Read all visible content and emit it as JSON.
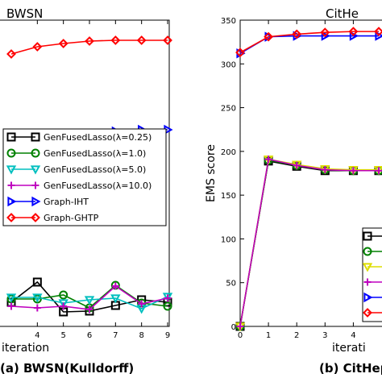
{
  "chart_data": [
    {
      "type": "line",
      "title": "BWSN",
      "caption": "(a) BWSN(Kulldorff)",
      "xlabel": "iteration",
      "ylabel": "",
      "xlim": [
        3,
        9
      ],
      "ylim": [
        0,
        38
      ],
      "x_ticks": [
        "4",
        "5",
        "6",
        "7",
        "8",
        "9"
      ],
      "grid": false,
      "legend_position": "center-right",
      "series": [
        {
          "name": "GenFusedLasso(λ=0.25)",
          "color": "#000000",
          "marker": "square",
          "x": [
            3,
            4,
            5,
            6,
            7,
            8,
            9
          ],
          "y": [
            3.0,
            5.5,
            1.8,
            1.9,
            2.6,
            3.3,
            3.0
          ]
        },
        {
          "name": "GenFusedLasso(λ=1.0)",
          "color": "#008000",
          "marker": "circle",
          "x": [
            3,
            4,
            5,
            6,
            7,
            8,
            9
          ],
          "y": [
            3.4,
            3.4,
            3.9,
            2.3,
            5.1,
            2.9,
            2.5
          ]
        },
        {
          "name": "GenFusedLasso(λ=5.0)",
          "color": "#00bfbf",
          "marker": "triangle-down",
          "x": [
            3,
            4,
            5,
            6,
            7,
            8,
            9
          ],
          "y": [
            3.6,
            3.6,
            2.9,
            3.3,
            3.5,
            2.2,
            3.7
          ]
        },
        {
          "name": "GenFusedLasso(λ=10.0)",
          "color": "#bf00bf",
          "marker": "plus",
          "x": [
            3,
            4,
            5,
            6,
            7,
            8,
            9
          ],
          "y": [
            2.5,
            2.3,
            2.5,
            2.1,
            5.0,
            2.8,
            3.5
          ]
        },
        {
          "name": "Graph-IHT",
          "color": "#0000ff",
          "marker": "triangle-right",
          "x": [
            3,
            4,
            5,
            6,
            7,
            8,
            9
          ],
          "y": [
            23.4,
            23.1,
            22.9,
            23.3,
            24.2,
            24.4,
            24.4
          ]
        },
        {
          "name": "Graph-GHTP",
          "color": "#ff0000",
          "marker": "diamond",
          "x": [
            3,
            4,
            5,
            6,
            7,
            8,
            9
          ],
          "y": [
            33.8,
            34.7,
            35.1,
            35.4,
            35.5,
            35.5,
            35.5
          ]
        }
      ]
    },
    {
      "type": "line",
      "title": "CitHe",
      "caption": "(b) CitHep",
      "xlabel": "iterati",
      "ylabel": "EMS score",
      "xlim": [
        0,
        4.9
      ],
      "ylim": [
        0,
        350
      ],
      "x_ticks": [
        "0",
        "1",
        "2",
        "3",
        "4"
      ],
      "y_ticks": [
        "0",
        "50",
        "100",
        "150",
        "200",
        "250",
        "300",
        "350"
      ],
      "grid": false,
      "legend_position": "bottom-right",
      "series": [
        {
          "name": "",
          "color": "#000000",
          "marker": "square",
          "x": [
            0,
            1,
            2,
            3,
            4,
            4.9
          ],
          "y": [
            0,
            189,
            183,
            178,
            178,
            178
          ]
        },
        {
          "name": "",
          "color": "#008000",
          "marker": "circle",
          "x": [
            0,
            1,
            2,
            3,
            4,
            4.9
          ],
          "y": [
            0,
            190,
            184,
            179,
            178,
            178
          ]
        },
        {
          "name": "",
          "color": "#dddd00",
          "marker": "triangle-down",
          "x": [
            0,
            1,
            2,
            3,
            4,
            4.9
          ],
          "y": [
            0,
            191,
            185,
            180,
            179,
            179
          ]
        },
        {
          "name": "",
          "color": "#bf00bf",
          "marker": "plus",
          "x": [
            0,
            1,
            2,
            3,
            4,
            4.9
          ],
          "y": [
            0,
            191,
            184,
            179,
            178,
            178
          ]
        },
        {
          "name": "",
          "color": "#0000ff",
          "marker": "triangle-right",
          "x": [
            0,
            1,
            2,
            3,
            4,
            4.9
          ],
          "y": [
            312,
            331,
            332,
            332,
            332,
            332
          ]
        },
        {
          "name": "",
          "color": "#ff0000",
          "marker": "diamond",
          "x": [
            0,
            1,
            2,
            3,
            4,
            4.9
          ],
          "y": [
            313,
            331,
            334,
            336,
            337,
            337
          ]
        }
      ]
    }
  ]
}
